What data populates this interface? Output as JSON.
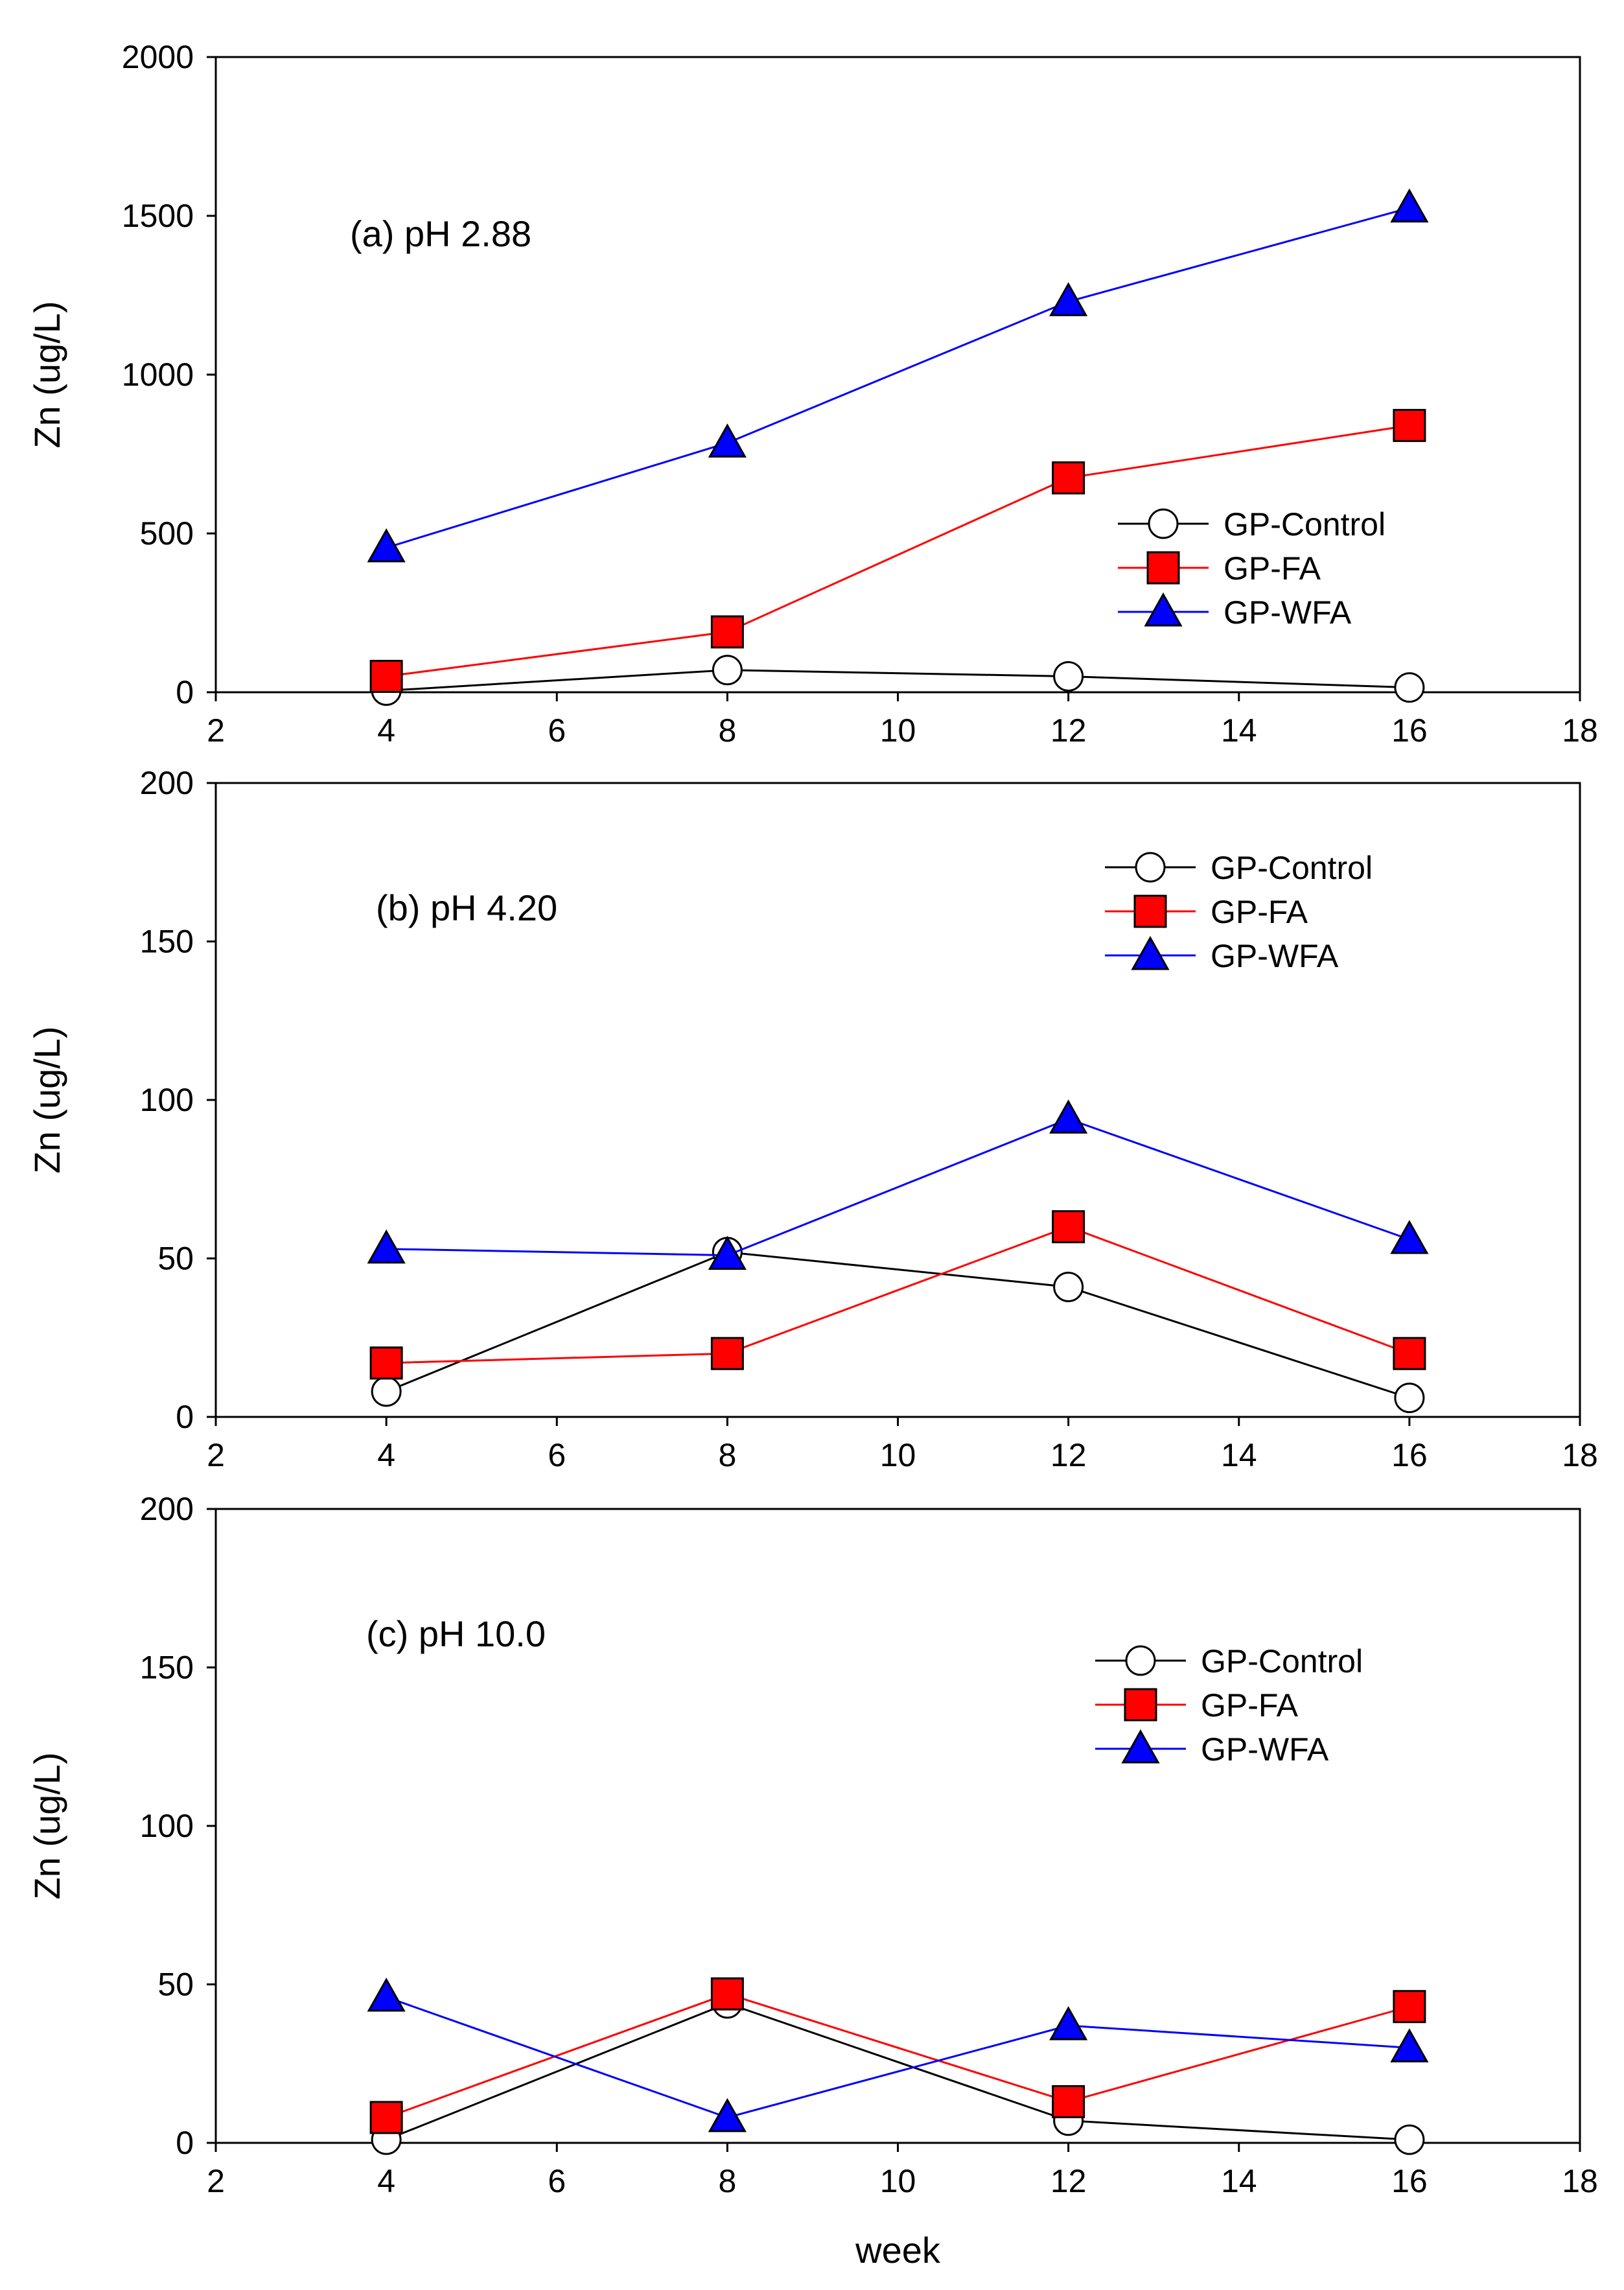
{
  "chart_data": [
    {
      "type": "line",
      "annotation": "(a) pH 2.88",
      "xlabel": "",
      "ylabel": "Zn (ug/L)",
      "xlim": [
        2,
        18
      ],
      "ylim": [
        0,
        2000
      ],
      "xticks": [
        2,
        4,
        6,
        8,
        10,
        12,
        14,
        16,
        18
      ],
      "yticks": [
        0,
        500,
        1000,
        1500,
        2000
      ],
      "legend_placement": "right-middle",
      "x": [
        4,
        8,
        12,
        16
      ],
      "series": [
        {
          "name": "GP-Control",
          "values": [
            5,
            70,
            50,
            15
          ]
        },
        {
          "name": "GP-FA",
          "values": [
            50,
            190,
            675,
            840
          ]
        },
        {
          "name": "GP-WFA",
          "values": [
            455,
            785,
            1230,
            1525
          ]
        }
      ]
    },
    {
      "type": "line",
      "annotation": "(b) pH 4.20",
      "xlabel": "",
      "ylabel": "Zn (ug/L)",
      "xlim": [
        2,
        18
      ],
      "ylim": [
        0,
        200
      ],
      "xticks": [
        2,
        4,
        6,
        8,
        10,
        12,
        14,
        16,
        18
      ],
      "yticks": [
        0,
        50,
        100,
        150,
        200
      ],
      "legend_placement": "top-right",
      "x": [
        4,
        8,
        12,
        16
      ],
      "series": [
        {
          "name": "GP-Control",
          "values": [
            8,
            52,
            41,
            6
          ]
        },
        {
          "name": "GP-FA",
          "values": [
            17,
            20,
            60,
            20
          ]
        },
        {
          "name": "GP-WFA",
          "values": [
            53,
            51,
            94,
            56
          ]
        }
      ]
    },
    {
      "type": "line",
      "annotation": "(c) pH 10.0",
      "xlabel": "week",
      "ylabel": "Zn (ug/L)",
      "xlim": [
        2,
        18
      ],
      "ylim": [
        0,
        200
      ],
      "xticks": [
        2,
        4,
        6,
        8,
        10,
        12,
        14,
        16,
        18
      ],
      "yticks": [
        0,
        50,
        100,
        150,
        200
      ],
      "legend_placement": "top-right",
      "x": [
        4,
        8,
        12,
        16
      ],
      "series": [
        {
          "name": "GP-Control",
          "values": [
            1,
            44,
            7,
            1
          ]
        },
        {
          "name": "GP-FA",
          "values": [
            8,
            47,
            13,
            43
          ]
        },
        {
          "name": "GP-WFA",
          "values": [
            46,
            8,
            37,
            30
          ]
        }
      ]
    }
  ],
  "series_styles": [
    {
      "name": "GP-Control",
      "line_color": "#000000",
      "marker": "circle",
      "marker_fill": "#ffffff",
      "marker_stroke": "#000000"
    },
    {
      "name": "GP-FA",
      "line_color": "#ff0000",
      "marker": "square",
      "marker_fill": "#ff0000",
      "marker_stroke": "#000000"
    },
    {
      "name": "GP-WFA",
      "line_color": "#0000ff",
      "marker": "triangle",
      "marker_fill": "#0000ff",
      "marker_stroke": "#000000"
    }
  ]
}
